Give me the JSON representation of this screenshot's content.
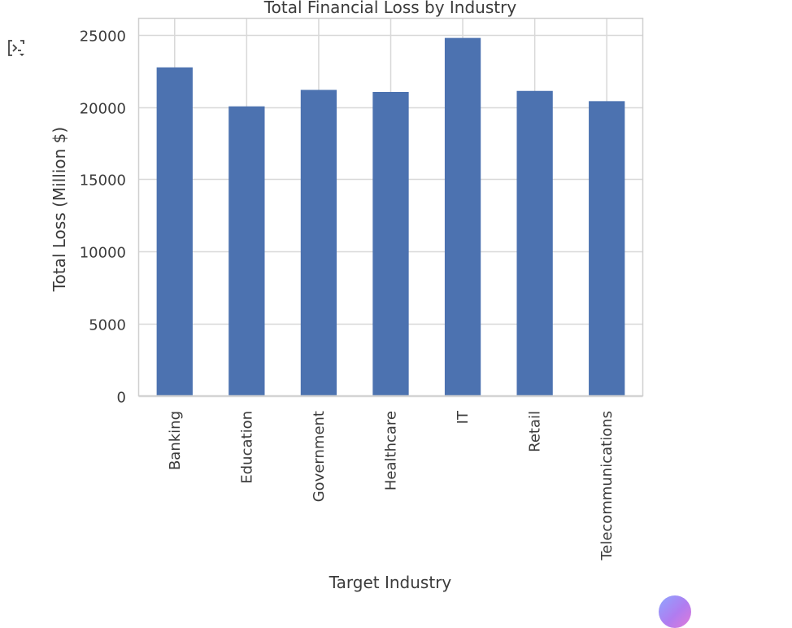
{
  "output": {
    "toggle_icon": "output-collapse-icon"
  },
  "colors": {
    "bar": "#4c72b0",
    "grid": "#d8d8d8",
    "frame": "#d0d0d0",
    "text": "#3b3b3b"
  },
  "chart_data": {
    "type": "bar",
    "title": "Total Financial Loss by Industry",
    "xlabel": "Target Industry",
    "ylabel": "Total Loss (Million $)",
    "categories": [
      "Banking",
      "Education",
      "Government",
      "Healthcare",
      "IT",
      "Retail",
      "Telecommunications"
    ],
    "values": [
      22750,
      20050,
      21190,
      21050,
      24790,
      21120,
      20410
    ],
    "ylim": [
      0,
      26150
    ],
    "yticks": [
      0,
      5000,
      10000,
      15000,
      20000,
      25000
    ],
    "grid": true,
    "legend": "none"
  },
  "assistant": {
    "icon": "assistant-bubble-icon"
  }
}
